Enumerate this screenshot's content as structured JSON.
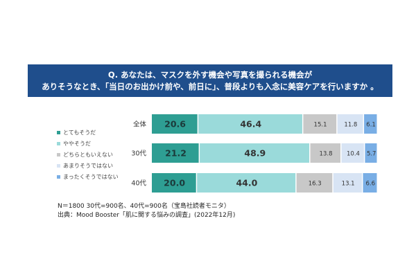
{
  "banner": {
    "line1": "Q. あなたは、マスクを外す機会や写真を撮られる機会が",
    "line2": "ありそうなとき、「当日のお出かけ前や、前日に」、普段よりも入念に美容ケアを行いますか 。"
  },
  "legend": [
    {
      "label": "とてもそうだ",
      "color": "#2e9e93"
    },
    {
      "label": "ややそうだ",
      "color": "#9adada"
    },
    {
      "label": "どちらともいえない",
      "color": "#c8c8c8"
    },
    {
      "label": "あまりそうではない",
      "color": "#d8e4f4"
    },
    {
      "label": "まったくそうではない",
      "color": "#79aee5"
    }
  ],
  "notes": {
    "line1": "N＝1800 30代=900名、40代=900名（宝島社読者モニタ）",
    "line2": "出典：Mood Booster「肌に関する悩みの調査」(2022年12月)"
  },
  "chart_data": {
    "type": "bar",
    "orientation": "horizontal",
    "stacked": true,
    "percent_scale": [
      0,
      100
    ],
    "categories": [
      "全体",
      "30代",
      "40代"
    ],
    "series": [
      {
        "name": "とてもそうだ",
        "values": [
          20.6,
          21.2,
          20.0
        ],
        "color": "#2e9e93"
      },
      {
        "name": "ややそうだ",
        "values": [
          46.4,
          48.9,
          44.0
        ],
        "color": "#9adada"
      },
      {
        "name": "どちらともいえない",
        "values": [
          15.1,
          13.8,
          16.3
        ],
        "color": "#c8c8c8"
      },
      {
        "name": "あまりそうではない",
        "values": [
          11.8,
          10.4,
          13.1
        ],
        "color": "#d8e4f4"
      },
      {
        "name": "まったくそうではない",
        "values": [
          6.1,
          5.7,
          6.6
        ],
        "color": "#79aee5"
      }
    ],
    "legend_position": "left",
    "grid": false
  }
}
